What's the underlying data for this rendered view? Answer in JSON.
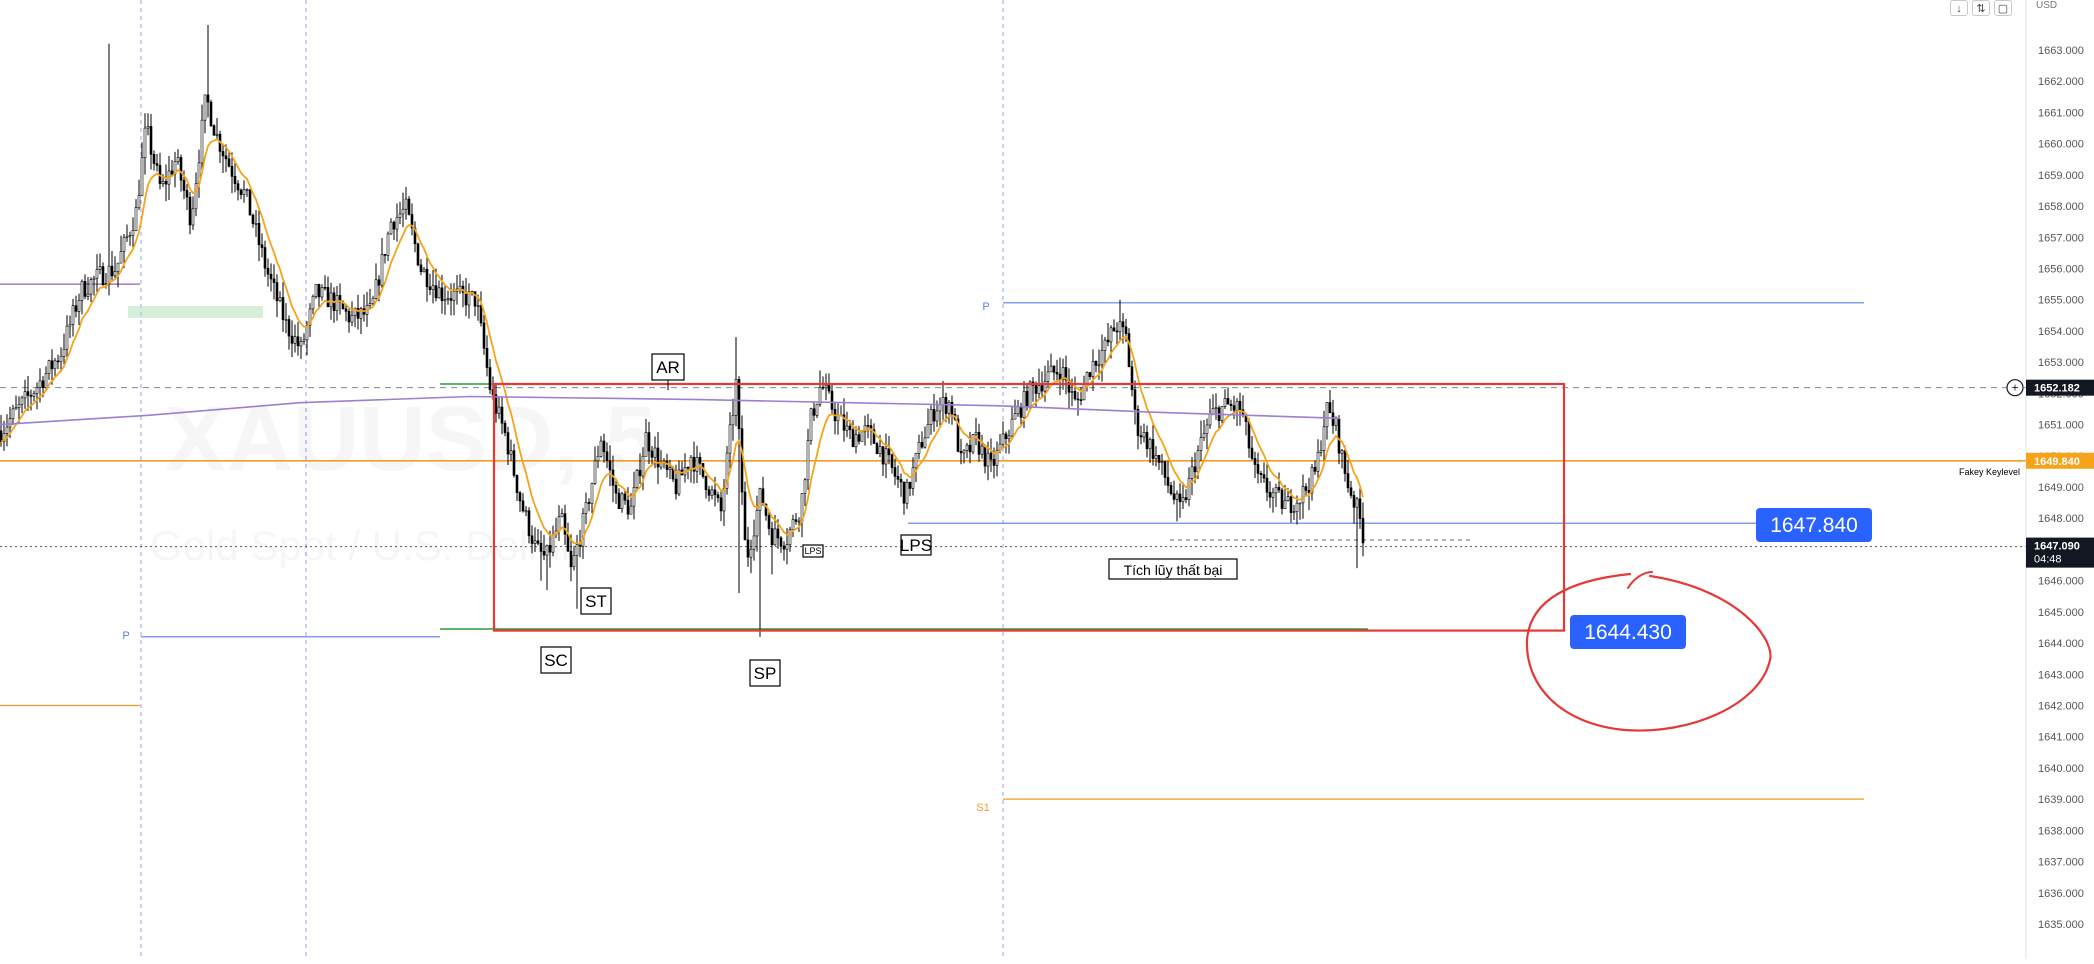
{
  "chart_data": {
    "type": "candlestick",
    "watermark": {
      "symbol": "XAUUSD, 5",
      "name": "Gold Spot / U.S. Dollar"
    },
    "price_axis": {
      "currency": "USD",
      "min": 1634.0,
      "max": 1664.0,
      "tick_step": 1,
      "tick_labels": [
        "1663.000",
        "1662.000",
        "1661.000",
        "1660.000",
        "1659.000",
        "1658.000",
        "1657.000",
        "1656.000",
        "1655.000",
        "1654.000",
        "1653.000",
        "1652.000",
        "1651.000",
        "1650.000",
        "1649.000",
        "1648.000",
        "1647.000",
        "1646.000",
        "1645.000",
        "1644.000",
        "1643.000",
        "1642.000",
        "1641.000",
        "1640.000",
        "1639.000",
        "1638.000",
        "1637.000",
        "1636.000",
        "1635.000"
      ]
    },
    "price_tags": [
      {
        "label": "1652.182",
        "price": 1652.182,
        "style": "crosshair"
      },
      {
        "label": "1649.840",
        "price": 1649.84,
        "style": "orange",
        "note": "Fakey Keylevel"
      },
      {
        "label": "1647.090",
        "sub": "04:48",
        "price": 1647.09,
        "style": "last"
      }
    ],
    "callouts": [
      {
        "label": "1647.840",
        "price": 1647.84
      },
      {
        "label": "1644.430",
        "price": 1644.43
      }
    ],
    "wyckoff_labels": [
      {
        "label": "AR",
        "price": 1653.0
      },
      {
        "label": "SC",
        "price": 1644.0
      },
      {
        "label": "ST",
        "price": 1645.9
      },
      {
        "label": "SP",
        "price": 1643.6
      },
      {
        "label": "LPS",
        "price": 1647.7,
        "small": true
      },
      {
        "label": "LPS",
        "price": 1647.6
      },
      {
        "label": "Tích lũy thất bại",
        "price": 1646.9
      }
    ],
    "pivot_labels": [
      {
        "label": "P",
        "price": 1644.3
      },
      {
        "label": "P",
        "price": 1655.0
      },
      {
        "label": "S1",
        "price": 1639.2
      }
    ],
    "horizontal_levels": [
      {
        "price": 1655.5,
        "color": "#9c5fb5"
      },
      {
        "price": 1644.2,
        "color": "#5b7ee6"
      },
      {
        "price": 1642.0,
        "color": "#f39c2a"
      },
      {
        "price": 1654.9,
        "color": "#5b7ee6"
      },
      {
        "price": 1639.0,
        "color": "#f39c2a"
      },
      {
        "price": 1647.84,
        "color": "#5b7ee6"
      },
      {
        "price": 1649.84,
        "color": "#f39c2a"
      }
    ],
    "range_box": {
      "top": 1652.3,
      "bottom": 1644.4,
      "color": "#e53935"
    },
    "colors": {
      "candles": "#000000",
      "ema": "#f5a31a",
      "sma": "#9c7fd1",
      "accent_blue": "#2962ff",
      "box_red": "#e53935",
      "annotation_red": "#e53935"
    }
  }
}
